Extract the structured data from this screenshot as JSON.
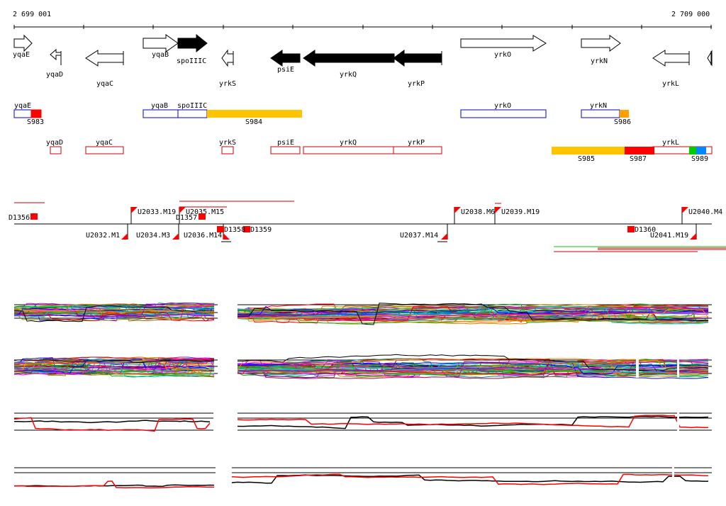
{
  "ruler": {
    "start_label": "2 699 001",
    "end_label": "2 709 000"
  },
  "genes": [
    {
      "name": "yqaE",
      "strand": "+",
      "filled": false
    },
    {
      "name": "yqaD",
      "strand": "-",
      "filled": false
    },
    {
      "name": "yqaC",
      "strand": "-",
      "filled": false
    },
    {
      "name": "yqaB",
      "strand": "+",
      "filled": false
    },
    {
      "name": "spoIIIC",
      "strand": "+",
      "filled": true
    },
    {
      "name": "yrkS",
      "strand": "-",
      "filled": false
    },
    {
      "name": "psiE",
      "strand": "-",
      "filled": true
    },
    {
      "name": "yrkQ",
      "strand": "-",
      "filled": true
    },
    {
      "name": "yrkP",
      "strand": "-",
      "filled": true
    },
    {
      "name": "yrkO",
      "strand": "+",
      "filled": false
    },
    {
      "name": "yrkN",
      "strand": "+",
      "filled": false
    },
    {
      "name": "yrkL",
      "strand": "-",
      "filled": false
    }
  ],
  "fwd_features": {
    "gene_labels": [
      "yqaE",
      "yqaB",
      "spoIIIC",
      "yrkO",
      "yrkN"
    ],
    "segment_labels": [
      "S983",
      "S984",
      "S986"
    ]
  },
  "rev_features": {
    "gene_labels": [
      "yqaD",
      "yqaC",
      "yrkS",
      "psiE",
      "yrkQ",
      "yrkP",
      "yrkL"
    ],
    "segment_labels": [
      "S985",
      "S987",
      "S989"
    ]
  },
  "probes": {
    "upper": [
      "U2033.M19",
      "U2035.M15",
      "U2038.M6",
      "U2039.M19",
      "U2040.M4"
    ],
    "lower": [
      "U2032.M1",
      "U2034.M3",
      "U2036.M14",
      "U2037.M14",
      "U2041.M19"
    ],
    "deletions": [
      "D1356",
      "D1357",
      "D1358",
      "D1359",
      "D1360"
    ]
  },
  "colors": {
    "blue": "#0000cc",
    "red": "#ff0000",
    "orange": "#ffc400",
    "green": "#00cc00",
    "cyan": "#0088ff"
  }
}
